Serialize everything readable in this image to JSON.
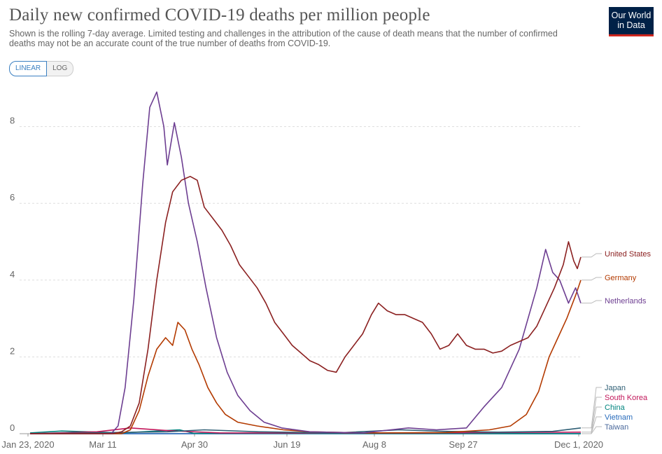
{
  "header": {
    "title": "Daily new confirmed COVID-19 deaths per million people",
    "subtitle": "Shown is the rolling 7-day average. Limited testing and challenges in the attribution of the cause of death means that the number of confirmed deaths may not be an accurate count of the true number of deaths from COVID-19.",
    "logo_line1": "Our World",
    "logo_line2": "in Data"
  },
  "scale_toggle": {
    "linear_label": "LINEAR",
    "log_label": "LOG",
    "selected": "linear"
  },
  "colors": {
    "United States": "#8b2020",
    "Germany": "#b33a00",
    "Netherlands": "#6d3e91",
    "Japan": "#2f5f75",
    "South Korea": "#c2185b",
    "China": "#00847e",
    "Vietnam": "#286bbb",
    "Taiwan": "#4c6a9c"
  },
  "chart_data": {
    "type": "line",
    "title": "Daily new confirmed COVID-19 deaths per million people",
    "xlabel": "",
    "ylabel": "",
    "x_ticks": [
      "Jan 23, 2020",
      "Mar 11",
      "Apr 30",
      "Jun 19",
      "Aug 8",
      "Sep 27",
      "Dec 1, 2020"
    ],
    "y_ticks": [
      0,
      2,
      4,
      6,
      8
    ],
    "xlim": [
      "2020-01-23",
      "2020-12-01"
    ],
    "ylim": [
      0,
      9
    ],
    "grid": "horizontal dashed",
    "legend": "right, inline labels at line ends",
    "series": [
      {
        "name": "United States",
        "points": [
          [
            "2020-01-23",
            0
          ],
          [
            "2020-03-10",
            0
          ],
          [
            "2020-03-15",
            0.05
          ],
          [
            "2020-03-20",
            0.2
          ],
          [
            "2020-03-25",
            0.8
          ],
          [
            "2020-03-30",
            2.2
          ],
          [
            "2020-04-04",
            4.0
          ],
          [
            "2020-04-09",
            5.5
          ],
          [
            "2020-04-13",
            6.3
          ],
          [
            "2020-04-18",
            6.6
          ],
          [
            "2020-04-23",
            6.7
          ],
          [
            "2020-04-27",
            6.6
          ],
          [
            "2020-05-01",
            5.9
          ],
          [
            "2020-05-06",
            5.6
          ],
          [
            "2020-05-11",
            5.3
          ],
          [
            "2020-05-16",
            4.9
          ],
          [
            "2020-05-21",
            4.4
          ],
          [
            "2020-05-26",
            4.1
          ],
          [
            "2020-05-31",
            3.8
          ],
          [
            "2020-06-05",
            3.4
          ],
          [
            "2020-06-10",
            2.9
          ],
          [
            "2020-06-15",
            2.6
          ],
          [
            "2020-06-20",
            2.3
          ],
          [
            "2020-06-25",
            2.1
          ],
          [
            "2020-06-30",
            1.9
          ],
          [
            "2020-07-05",
            1.8
          ],
          [
            "2020-07-10",
            1.65
          ],
          [
            "2020-07-15",
            1.6
          ],
          [
            "2020-07-20",
            2.0
          ],
          [
            "2020-07-25",
            2.3
          ],
          [
            "2020-07-30",
            2.6
          ],
          [
            "2020-08-04",
            3.1
          ],
          [
            "2020-08-08",
            3.4
          ],
          [
            "2020-08-13",
            3.2
          ],
          [
            "2020-08-18",
            3.1
          ],
          [
            "2020-08-23",
            3.1
          ],
          [
            "2020-08-28",
            3.0
          ],
          [
            "2020-09-02",
            2.9
          ],
          [
            "2020-09-07",
            2.6
          ],
          [
            "2020-09-12",
            2.2
          ],
          [
            "2020-09-17",
            2.3
          ],
          [
            "2020-09-22",
            2.6
          ],
          [
            "2020-09-27",
            2.3
          ],
          [
            "2020-10-02",
            2.2
          ],
          [
            "2020-10-07",
            2.2
          ],
          [
            "2020-10-12",
            2.1
          ],
          [
            "2020-10-17",
            2.15
          ],
          [
            "2020-10-22",
            2.3
          ],
          [
            "2020-10-27",
            2.4
          ],
          [
            "2020-11-01",
            2.5
          ],
          [
            "2020-11-06",
            2.8
          ],
          [
            "2020-11-11",
            3.3
          ],
          [
            "2020-11-16",
            3.8
          ],
          [
            "2020-11-21",
            4.4
          ],
          [
            "2020-11-24",
            5.0
          ],
          [
            "2020-11-27",
            4.5
          ],
          [
            "2020-11-29",
            4.3
          ],
          [
            "2020-12-01",
            4.6
          ]
        ]
      },
      {
        "name": "Germany",
        "points": [
          [
            "2020-01-23",
            0
          ],
          [
            "2020-03-15",
            0
          ],
          [
            "2020-03-20",
            0.1
          ],
          [
            "2020-03-25",
            0.6
          ],
          [
            "2020-03-30",
            1.5
          ],
          [
            "2020-04-04",
            2.2
          ],
          [
            "2020-04-09",
            2.5
          ],
          [
            "2020-04-13",
            2.3
          ],
          [
            "2020-04-16",
            2.9
          ],
          [
            "2020-04-20",
            2.7
          ],
          [
            "2020-04-24",
            2.2
          ],
          [
            "2020-04-28",
            1.8
          ],
          [
            "2020-05-03",
            1.2
          ],
          [
            "2020-05-08",
            0.8
          ],
          [
            "2020-05-13",
            0.5
          ],
          [
            "2020-05-20",
            0.3
          ],
          [
            "2020-05-31",
            0.2
          ],
          [
            "2020-06-15",
            0.1
          ],
          [
            "2020-06-30",
            0.05
          ],
          [
            "2020-07-30",
            0.02
          ],
          [
            "2020-09-15",
            0.03
          ],
          [
            "2020-10-10",
            0.1
          ],
          [
            "2020-10-22",
            0.2
          ],
          [
            "2020-10-31",
            0.5
          ],
          [
            "2020-11-07",
            1.1
          ],
          [
            "2020-11-13",
            2.0
          ],
          [
            "2020-11-18",
            2.5
          ],
          [
            "2020-11-23",
            3.0
          ],
          [
            "2020-11-28",
            3.6
          ],
          [
            "2020-12-01",
            4.0
          ]
        ]
      },
      {
        "name": "Netherlands",
        "points": [
          [
            "2020-01-23",
            0
          ],
          [
            "2020-03-09",
            0
          ],
          [
            "2020-03-13",
            0.2
          ],
          [
            "2020-03-17",
            1.2
          ],
          [
            "2020-03-22",
            3.5
          ],
          [
            "2020-03-27",
            6.5
          ],
          [
            "2020-03-31",
            8.5
          ],
          [
            "2020-04-04",
            8.9
          ],
          [
            "2020-04-08",
            8.0
          ],
          [
            "2020-04-10",
            7.0
          ],
          [
            "2020-04-14",
            8.1
          ],
          [
            "2020-04-18",
            7.2
          ],
          [
            "2020-04-22",
            6.0
          ],
          [
            "2020-04-27",
            5.0
          ],
          [
            "2020-05-02",
            3.8
          ],
          [
            "2020-05-08",
            2.5
          ],
          [
            "2020-05-14",
            1.6
          ],
          [
            "2020-05-20",
            1.0
          ],
          [
            "2020-05-27",
            0.6
          ],
          [
            "2020-06-04",
            0.3
          ],
          [
            "2020-06-14",
            0.15
          ],
          [
            "2020-06-30",
            0.05
          ],
          [
            "2020-07-30",
            0.02
          ],
          [
            "2020-08-25",
            0.15
          ],
          [
            "2020-09-10",
            0.1
          ],
          [
            "2020-09-27",
            0.15
          ],
          [
            "2020-10-07",
            0.7
          ],
          [
            "2020-10-17",
            1.2
          ],
          [
            "2020-10-27",
            2.2
          ],
          [
            "2020-11-06",
            3.8
          ],
          [
            "2020-11-11",
            4.8
          ],
          [
            "2020-11-15",
            4.2
          ],
          [
            "2020-11-19",
            4.0
          ],
          [
            "2020-11-24",
            3.4
          ],
          [
            "2020-11-28",
            3.8
          ],
          [
            "2020-12-01",
            3.4
          ]
        ]
      },
      {
        "name": "Japan",
        "points": [
          [
            "2020-01-23",
            0
          ],
          [
            "2020-04-10",
            0.05
          ],
          [
            "2020-05-01",
            0.1
          ],
          [
            "2020-06-01",
            0.05
          ],
          [
            "2020-07-15",
            0.02
          ],
          [
            "2020-08-20",
            0.1
          ],
          [
            "2020-09-15",
            0.06
          ],
          [
            "2020-10-15",
            0.04
          ],
          [
            "2020-11-15",
            0.06
          ],
          [
            "2020-12-01",
            0.15
          ]
        ]
      },
      {
        "name": "South Korea",
        "points": [
          [
            "2020-01-23",
            0
          ],
          [
            "2020-03-01",
            0.05
          ],
          [
            "2020-03-20",
            0.15
          ],
          [
            "2020-04-10",
            0.08
          ],
          [
            "2020-05-10",
            0.02
          ],
          [
            "2020-09-01",
            0.02
          ],
          [
            "2020-12-01",
            0.04
          ]
        ]
      },
      {
        "name": "China",
        "points": [
          [
            "2020-01-23",
            0.02
          ],
          [
            "2020-02-10",
            0.07
          ],
          [
            "2020-02-25",
            0.05
          ],
          [
            "2020-03-15",
            0.02
          ],
          [
            "2020-04-17",
            0.1
          ],
          [
            "2020-04-25",
            0.01
          ],
          [
            "2020-12-01",
            0
          ]
        ]
      },
      {
        "name": "Vietnam",
        "points": [
          [
            "2020-01-23",
            0
          ],
          [
            "2020-12-01",
            0
          ]
        ]
      },
      {
        "name": "Taiwan",
        "points": [
          [
            "2020-01-23",
            0
          ],
          [
            "2020-12-01",
            0
          ]
        ]
      }
    ]
  }
}
